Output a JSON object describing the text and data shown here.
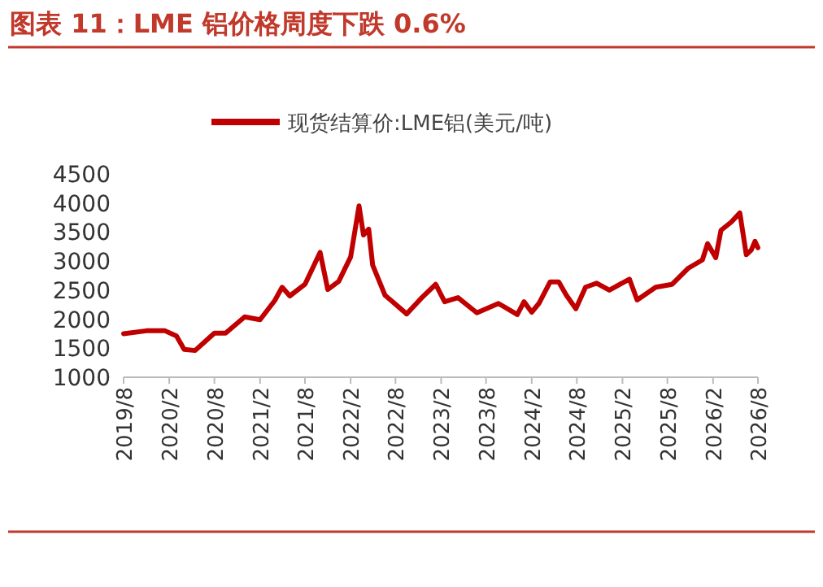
{
  "chart_data": {
    "type": "line",
    "title": "图表 11：LME 铝价格周度下跌 0.6%",
    "legend": "top",
    "x": [
      "2019-08-01",
      "2019-11-01",
      "2020-01-15",
      "2020-03-01",
      "2020-04-01",
      "2020-05-15",
      "2020-08-01",
      "2020-09-15",
      "2020-12-01",
      "2021-02-01",
      "2021-04-01",
      "2021-05-01",
      "2021-06-01",
      "2021-08-01",
      "2021-10-01",
      "2021-11-01",
      "2021-12-15",
      "2022-02-01",
      "2022-03-07",
      "2022-03-25",
      "2022-04-15",
      "2022-05-01",
      "2022-06-20",
      "2022-07-15",
      "2022-09-15",
      "2022-11-15",
      "2023-01-10",
      "2023-02-15",
      "2023-04-10",
      "2023-06-25",
      "2023-09-20",
      "2023-12-05",
      "2024-01-01",
      "2024-02-01",
      "2024-03-01",
      "2024-04-15",
      "2024-05-20",
      "2024-06-20",
      "2024-07-28",
      "2024-09-05",
      "2024-10-20",
      "2024-12-10",
      "2025-03-01",
      "2025-04-01",
      "2025-06-15",
      "2025-08-20",
      "2025-10-25",
      "2025-12-20",
      "2026-01-10",
      "2026-02-12",
      "2026-03-05",
      "2026-04-15",
      "2026-05-20",
      "2026-06-15",
      "2026-07-05",
      "2026-07-20",
      "2026-08-01"
    ],
    "series": [
      {
        "name": "现货结算价:LME铝(美元/吨)",
        "color": "#c00000",
        "values": [
          1750,
          1800,
          1800,
          1710,
          1480,
          1460,
          1760,
          1760,
          2040,
          1990,
          2320,
          2550,
          2400,
          2600,
          3150,
          2510,
          2650,
          3070,
          3950,
          3450,
          3550,
          2930,
          2410,
          2320,
          2090,
          2370,
          2600,
          2300,
          2370,
          2110,
          2270,
          2080,
          2300,
          2120,
          2270,
          2640,
          2640,
          2410,
          2180,
          2550,
          2620,
          2500,
          2690,
          2330,
          2550,
          2600,
          2880,
          3020,
          3300,
          3060,
          3530,
          3670,
          3830,
          3110,
          3190,
          3340,
          3230
        ]
      }
    ],
    "xlim": [
      "2019-08-01",
      "2026-08-01"
    ],
    "xticks": [
      {
        "value": "2019-08-01",
        "label": "2019/8"
      },
      {
        "value": "2020-02-01",
        "label": "2020/2"
      },
      {
        "value": "2020-08-01",
        "label": "2020/8"
      },
      {
        "value": "2021-02-01",
        "label": "2021/2"
      },
      {
        "value": "2021-08-01",
        "label": "2021/8"
      },
      {
        "value": "2022-02-01",
        "label": "2022/2"
      },
      {
        "value": "2022-08-01",
        "label": "2022/8"
      },
      {
        "value": "2023-02-01",
        "label": "2023/2"
      },
      {
        "value": "2023-08-01",
        "label": "2023/8"
      },
      {
        "value": "2024-02-01",
        "label": "2024/2"
      },
      {
        "value": "2024-08-01",
        "label": "2024/8"
      },
      {
        "value": "2025-02-01",
        "label": "2025/2"
      },
      {
        "value": "2025-08-01",
        "label": "2025/8"
      },
      {
        "value": "2026-02-01",
        "label": "2026/2"
      },
      {
        "value": "2026-08-01",
        "label": "2026/8"
      }
    ],
    "ylim": [
      1000,
      4500
    ],
    "yticks": [
      1000,
      1500,
      2000,
      2500,
      3000,
      3500,
      4000,
      4500
    ]
  }
}
